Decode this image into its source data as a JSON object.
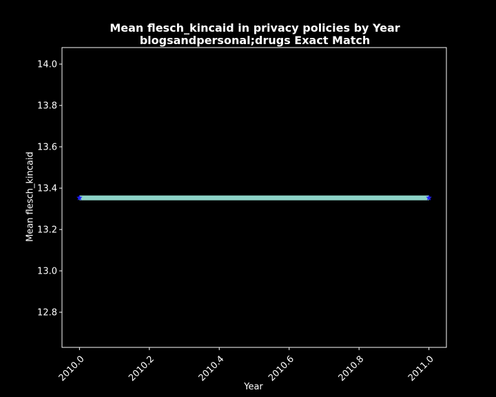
{
  "chart_data": {
    "type": "line",
    "title": "Mean flesch_kincaid in privacy policies by Year",
    "subtitle": "blogsandpersonal;drugs Exact Match",
    "xlabel": "Year",
    "ylabel": "Mean flesch_kincaid",
    "x": [
      2010.0,
      2011.0
    ],
    "series": [
      {
        "values": [
          13.353,
          13.353
        ]
      }
    ],
    "xlim": [
      2009.95,
      2011.05
    ],
    "ylim": [
      12.63,
      14.08
    ],
    "xticks": [
      "2010.0",
      "2010.2",
      "2010.4",
      "2010.6",
      "2010.8",
      "2011.0"
    ],
    "yticks": [
      "12.8",
      "13.0",
      "13.2",
      "13.4",
      "13.6",
      "13.8",
      "14.0"
    ],
    "grid": false,
    "colors": {
      "background": "#000000",
      "axes": "#ffffff",
      "line": "#8dd3c7",
      "marker": "#1f1fff"
    },
    "marker": "star"
  }
}
